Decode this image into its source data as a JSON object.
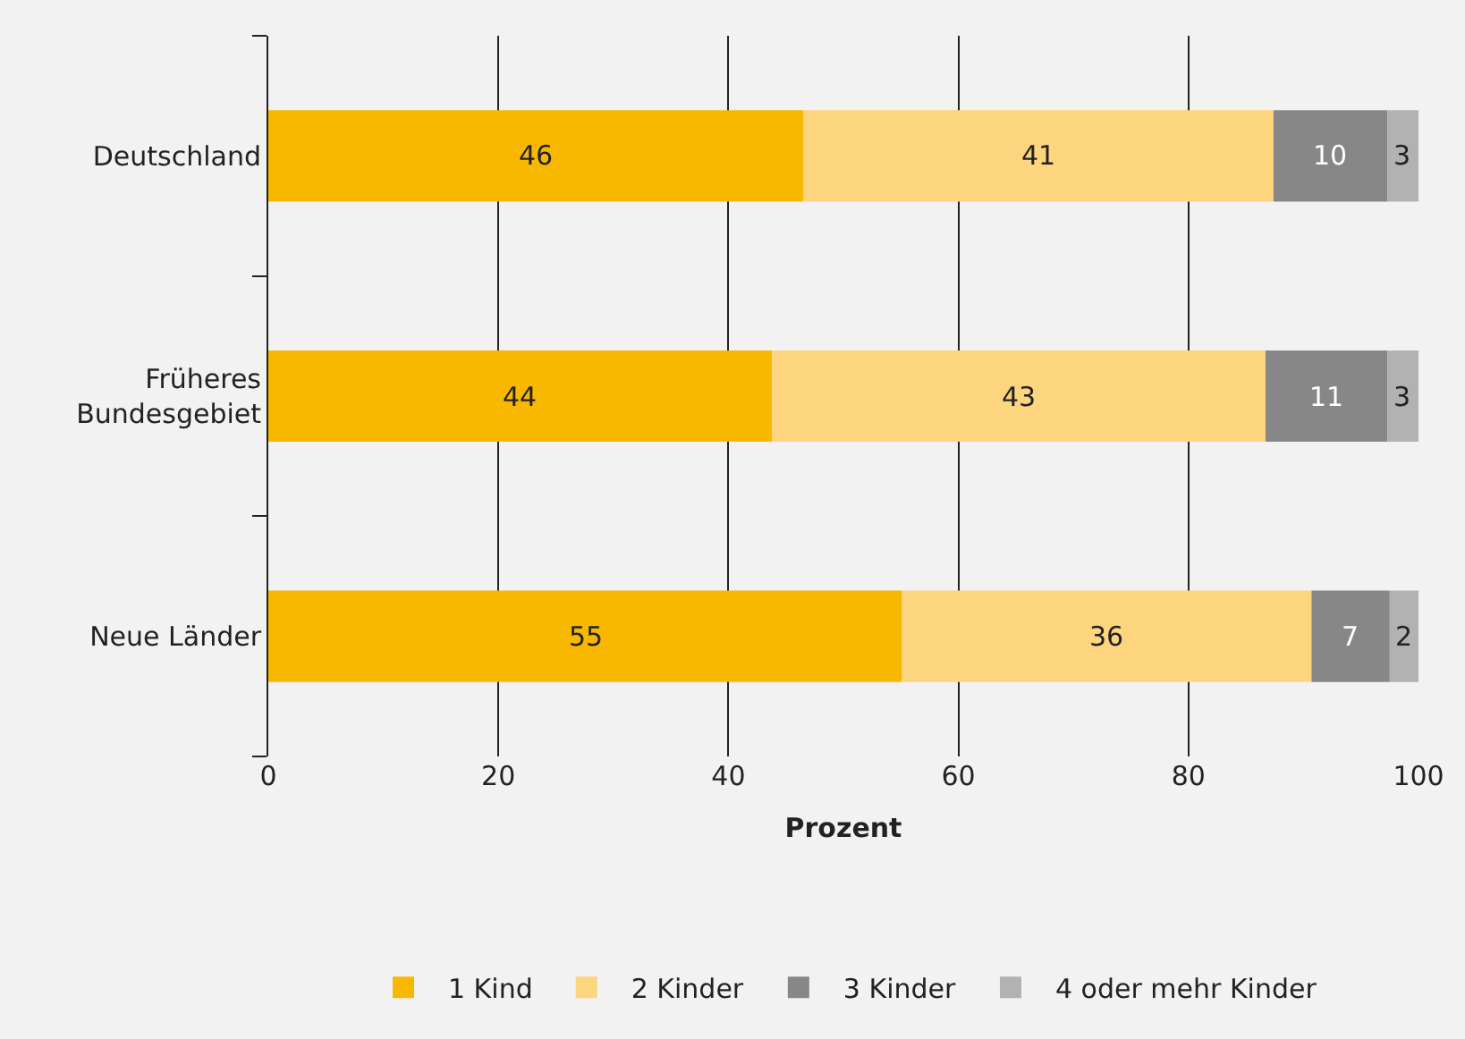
{
  "chart_data": {
    "type": "bar",
    "orientation": "horizontal",
    "stacked": true,
    "categories": [
      "Deutschland",
      "Früheres Bundesgebiet",
      "Neue Länder"
    ],
    "series": [
      {
        "name": "1 Kind",
        "color": "#f9b800",
        "values": [
          46.5,
          43.8,
          55.1
        ],
        "value_labels": [
          "46",
          "44",
          "55"
        ]
      },
      {
        "name": "2 Kinder",
        "color": "#fdd57e",
        "values": [
          40.9,
          42.9,
          35.6
        ],
        "value_labels": [
          "41",
          "43",
          "36"
        ]
      },
      {
        "name": "3 Kinder",
        "color": "#878787",
        "values": [
          9.9,
          10.6,
          6.8
        ],
        "value_labels": [
          "10",
          "11",
          "7"
        ]
      },
      {
        "name": "4 oder mehr Kinder",
        "color": "#b2b2b2",
        "values": [
          2.7,
          2.7,
          2.5
        ],
        "value_labels": [
          "3",
          "3",
          "2"
        ]
      }
    ],
    "xlabel": "Prozent",
    "xlim": [
      0,
      100
    ],
    "xticks": [
      0,
      20,
      40,
      60,
      80,
      100
    ],
    "grid": "x",
    "legend": "bottom"
  }
}
